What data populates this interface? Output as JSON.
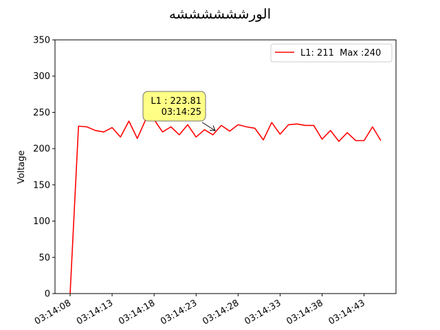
{
  "chart_data": {
    "type": "line",
    "title": "الورششششششه",
    "xlabel": "",
    "ylabel": "Voltage",
    "ylim": [
      0,
      350
    ],
    "yticks": [
      0,
      50,
      100,
      150,
      200,
      250,
      300,
      350
    ],
    "xtick_labels": [
      "03:14:08",
      "03:14:13",
      "03:14:18",
      "03:14:23",
      "03:14:28",
      "03:14:33",
      "03:14:38",
      "03:14:43"
    ],
    "xtick_seconds": [
      0,
      5,
      10,
      15,
      20,
      25,
      30,
      35
    ],
    "xlim_seconds": [
      -1.8,
      38.8
    ],
    "series": [
      {
        "name": "L1",
        "legend_label": "L1: 211  Max :240",
        "color": "#ff0000",
        "x_seconds": [
          0,
          1,
          2,
          3,
          4,
          5,
          6,
          7,
          8,
          9,
          10,
          11,
          12,
          13,
          14,
          15,
          16,
          17,
          18,
          19,
          20,
          21,
          22,
          23,
          24,
          25,
          26,
          27,
          28,
          29,
          30,
          31,
          32,
          33,
          34,
          35,
          36,
          37
        ],
        "values": [
          0,
          231,
          230,
          225,
          223,
          229,
          216,
          238,
          214,
          240,
          240,
          223,
          230,
          219,
          233,
          216,
          226,
          219,
          232,
          224,
          233,
          230,
          228,
          212,
          236,
          220,
          233,
          234,
          232,
          232,
          213,
          225,
          210,
          222,
          211,
          211,
          230,
          211
        ]
      }
    ],
    "legend_position": "upper right",
    "annotation": {
      "line1": "L1 : 223.81",
      "line2": "03:14:25",
      "target_seconds": 17.6,
      "target_value": 223.81,
      "box_color": "#ffff80"
    }
  }
}
